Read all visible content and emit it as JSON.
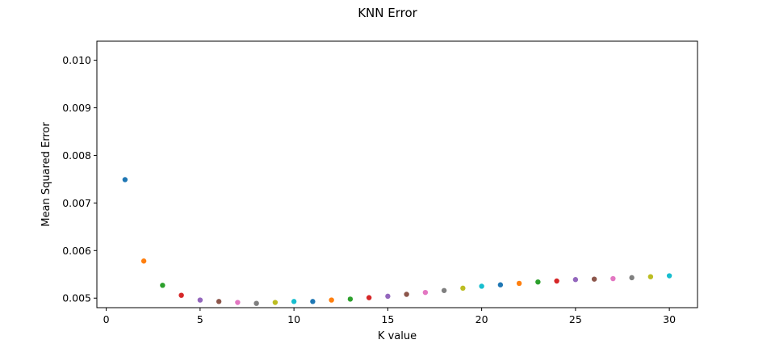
{
  "chart_data": {
    "type": "scatter",
    "title": "KNN Error",
    "xlabel": "K value",
    "ylabel": "Mean Squared Error",
    "xlim": [
      -0.5,
      31.5
    ],
    "ylim": [
      0.0048,
      0.0104
    ],
    "x_ticks": [
      0,
      5,
      10,
      15,
      20,
      25,
      30
    ],
    "y_ticks": [
      0.005,
      0.006,
      0.007,
      0.008,
      0.009,
      0.01
    ],
    "y_tick_labels": [
      "0.005",
      "0.006",
      "0.007",
      "0.008",
      "0.009",
      "0.010"
    ],
    "grid": false,
    "x": [
      1,
      2,
      3,
      4,
      5,
      6,
      7,
      8,
      9,
      10,
      11,
      12,
      13,
      14,
      15,
      16,
      17,
      18,
      19,
      20,
      21,
      22,
      23,
      24,
      25,
      26,
      27,
      28,
      29,
      30
    ],
    "y": [
      0.00749,
      0.00578,
      0.00527,
      0.00506,
      0.00496,
      0.00493,
      0.00491,
      0.00489,
      0.00491,
      0.00493,
      0.00493,
      0.00496,
      0.00498,
      0.00501,
      0.00504,
      0.00508,
      0.00512,
      0.00516,
      0.00521,
      0.00525,
      0.00528,
      0.00531,
      0.00534,
      0.00536,
      0.00539,
      0.0054,
      0.00541,
      0.00543,
      0.00545,
      0.00547
    ],
    "colors": [
      "#1f77b4",
      "#ff7f0e",
      "#2ca02c",
      "#d62728",
      "#9467bd",
      "#8c564b",
      "#e377c2",
      "#7f7f7f",
      "#bcbd22",
      "#17becf"
    ]
  }
}
